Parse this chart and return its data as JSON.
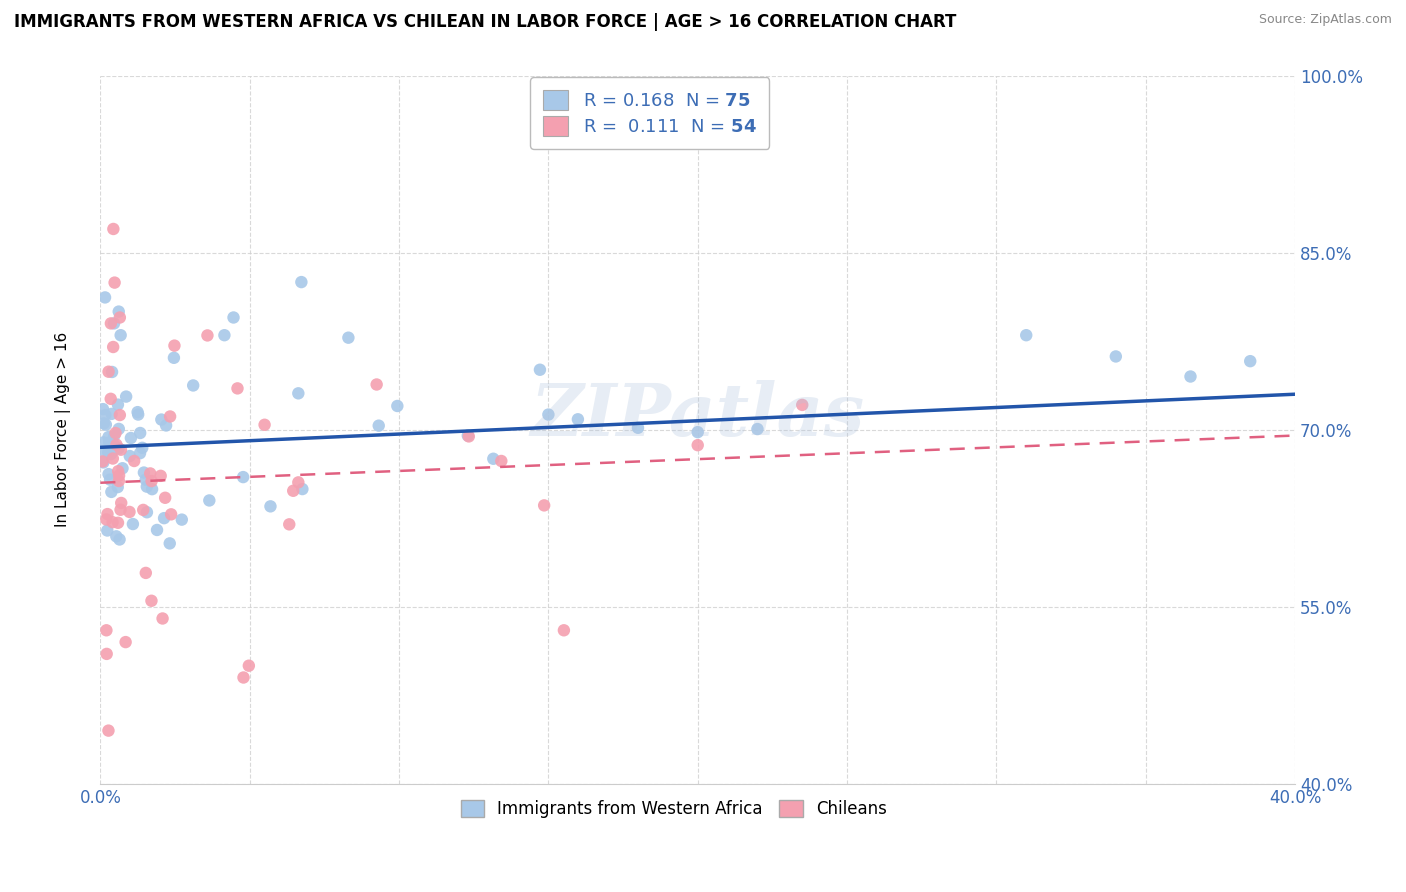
{
  "title": "IMMIGRANTS FROM WESTERN AFRICA VS CHILEAN IN LABOR FORCE | AGE > 16 CORRELATION CHART",
  "source": "Source: ZipAtlas.com",
  "ylabel": "In Labor Force | Age > 16",
  "xlim": [
    0.0,
    0.4
  ],
  "ylim": [
    0.4,
    1.0
  ],
  "xtick_positions": [
    0.0,
    0.05,
    0.1,
    0.15,
    0.2,
    0.25,
    0.3,
    0.35,
    0.4
  ],
  "xtick_labels_show": [
    "0.0%",
    "",
    "",
    "",
    "",
    "",
    "",
    "",
    "40.0%"
  ],
  "ytick_positions": [
    0.4,
    0.55,
    0.7,
    0.85,
    1.0
  ],
  "ytick_labels": [
    "40.0%",
    "55.0%",
    "70.0%",
    "85.0%",
    "100.0%"
  ],
  "series_blue": {
    "label": "Immigrants from Western Africa",
    "R": 0.168,
    "N": 75,
    "color": "#a8c8e8",
    "line_color": "#2255aa"
  },
  "series_pink": {
    "label": "Chileans",
    "R": 0.111,
    "N": 54,
    "color": "#f4a0b0",
    "line_color": "#e06080"
  },
  "legend_text_color": "#3d6db5",
  "watermark": "ZIPatlas",
  "background_color": "#ffffff",
  "grid_color": "#d0d0d0",
  "title_fontsize": 12,
  "tick_fontsize": 12,
  "axis_label_fontsize": 11
}
